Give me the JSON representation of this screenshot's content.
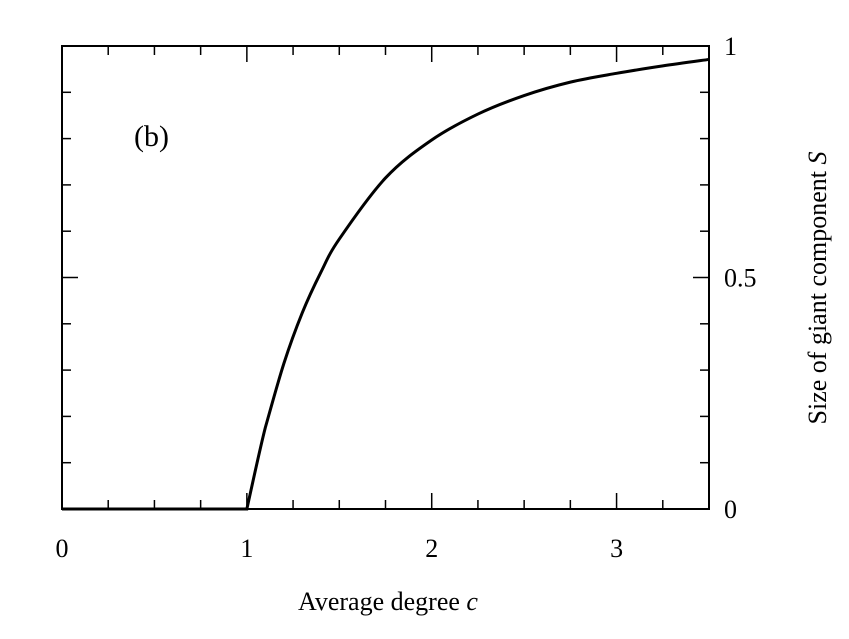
{
  "chart_data": {
    "type": "line",
    "panel_label": "(b)",
    "xlabel": "Average degree",
    "xlabel_var": "c",
    "ylabel": "Size of giant component",
    "ylabel_var": "S",
    "xlim": [
      0,
      3.5
    ],
    "ylim": [
      0,
      1
    ],
    "x_ticks": [
      {
        "value": 0,
        "label": "0"
      },
      {
        "value": 1,
        "label": "1"
      },
      {
        "value": 2,
        "label": "2"
      },
      {
        "value": 3,
        "label": "3"
      }
    ],
    "y_ticks": [
      {
        "value": 0,
        "label": "0"
      },
      {
        "value": 0.5,
        "label": "0.5"
      },
      {
        "value": 1,
        "label": "1"
      }
    ],
    "grid": false,
    "series": [
      {
        "x": [
          0,
          0.5,
          1.0,
          1.1,
          1.2,
          1.3,
          1.4,
          1.5,
          1.75,
          2.0,
          2.25,
          2.5,
          2.75,
          3.0,
          3.25,
          3.5
        ],
        "y": [
          0,
          0,
          0,
          0.176,
          0.314,
          0.424,
          0.511,
          0.583,
          0.715,
          0.797,
          0.853,
          0.893,
          0.922,
          0.941,
          0.957,
          0.971
        ]
      }
    ]
  }
}
